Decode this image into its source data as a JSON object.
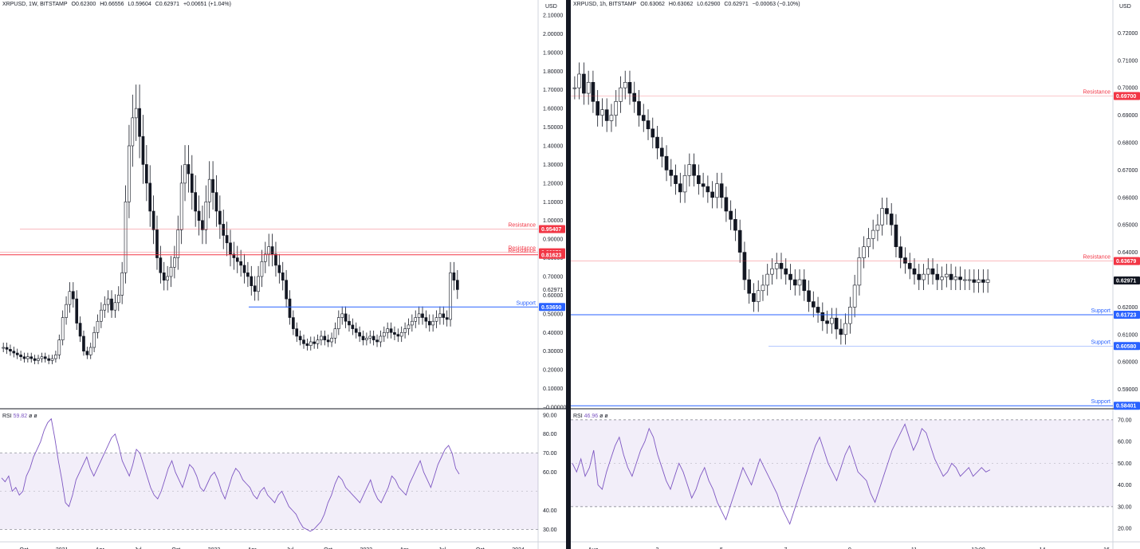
{
  "left": {
    "legend": {
      "symbol": "XRPUSD, 1W, BITSTAMP",
      "open": "O0.62300",
      "high": "H0.66556",
      "low": "L0.59604",
      "close": "C0.62971",
      "change": "+0.00651 (+1.04%)"
    },
    "currency": "USD",
    "price_axis": [
      "2.10000",
      "2.00000",
      "1.90000",
      "1.80000",
      "1.70000",
      "1.60000",
      "1.50000",
      "1.40000",
      "1.30000",
      "1.20000",
      "1.10000",
      "1.00000",
      "0.90000",
      "0.80000",
      "0.70000",
      "0.60000",
      "0.50000",
      "0.40000",
      "0.30000",
      "0.20000",
      "0.10000",
      "−0.00000"
    ],
    "price_axis_values": [
      2.1,
      2.0,
      1.9,
      1.8,
      1.7,
      1.6,
      1.5,
      1.4,
      1.3,
      1.2,
      1.1,
      1.0,
      0.9,
      0.8,
      0.7,
      0.6,
      0.5,
      0.4,
      0.3,
      0.2,
      0.1,
      0.0
    ],
    "price_range": [
      0.0,
      2.1
    ],
    "levels": [
      {
        "label": "Resistance",
        "value": 0.95407,
        "tag": "0.95407",
        "color": "#f23645",
        "style": "thin"
      },
      {
        "label": "Resistance",
        "value": 0.82973,
        "tag": "0.82973",
        "color": "#f23645",
        "style": "thin"
      },
      {
        "label": "Resistance",
        "value": 0.81623,
        "tag": "0.81623",
        "color": "#f23645",
        "style": "thick"
      },
      {
        "label": "Support",
        "value": 0.5365,
        "tag": "0.53650",
        "color": "#2962ff",
        "style": "thick"
      }
    ],
    "current_price": {
      "value": 0.62971,
      "tag": "0.62971"
    },
    "time_axis": [
      "Oct",
      "2021",
      "Apr",
      "Jul",
      "Oct",
      "2022",
      "Apr",
      "Jul",
      "Oct",
      "2023",
      "Apr",
      "Jul",
      "Oct",
      "2024"
    ],
    "rsi": {
      "label": "RSI",
      "value": "59.82",
      "extra": "ø ø",
      "axis": [
        "90.00",
        "80.00",
        "70.00",
        "60.00",
        "40.00",
        "30.00"
      ],
      "axis_values": [
        90,
        80,
        70,
        60,
        40,
        30
      ],
      "range": [
        26,
        92
      ],
      "band": [
        30,
        70
      ],
      "mid": 50,
      "values": [
        57,
        55,
        58,
        50,
        52,
        48,
        50,
        58,
        62,
        68,
        72,
        76,
        82,
        86,
        88,
        78,
        66,
        56,
        44,
        42,
        48,
        56,
        60,
        64,
        68,
        62,
        58,
        62,
        66,
        70,
        74,
        78,
        80,
        74,
        66,
        62,
        58,
        64,
        72,
        70,
        64,
        58,
        52,
        48,
        46,
        50,
        56,
        62,
        66,
        60,
        56,
        52,
        58,
        64,
        62,
        58,
        52,
        50,
        54,
        58,
        60,
        56,
        50,
        46,
        52,
        58,
        62,
        60,
        56,
        54,
        52,
        48,
        46,
        50,
        52,
        48,
        46,
        44,
        48,
        50,
        46,
        42,
        40,
        38,
        34,
        31,
        30,
        29,
        30,
        32,
        34,
        38,
        44,
        48,
        54,
        58,
        56,
        52,
        50,
        48,
        46,
        44,
        48,
        52,
        56,
        50,
        46,
        44,
        48,
        52,
        58,
        56,
        52,
        50,
        48,
        54,
        58,
        62,
        66,
        60,
        56,
        52,
        58,
        64,
        68,
        72,
        74,
        70,
        62,
        59
      ]
    },
    "candles": [
      0.32,
      0.31,
      0.3,
      0.29,
      0.28,
      0.27,
      0.26,
      0.27,
      0.26,
      0.25,
      0.26,
      0.27,
      0.26,
      0.25,
      0.26,
      0.28,
      0.36,
      0.48,
      0.55,
      0.62,
      0.58,
      0.45,
      0.38,
      0.3,
      0.28,
      0.32,
      0.4,
      0.46,
      0.52,
      0.55,
      0.58,
      0.52,
      0.56,
      0.6,
      0.72,
      1.1,
      1.4,
      1.55,
      1.6,
      1.45,
      1.3,
      1.2,
      1.05,
      0.95,
      0.8,
      0.72,
      0.68,
      0.7,
      0.75,
      0.8,
      0.95,
      1.2,
      1.3,
      1.25,
      1.15,
      1.05,
      1.0,
      0.95,
      1.1,
      1.22,
      1.15,
      1.05,
      0.98,
      0.92,
      0.88,
      0.82,
      0.8,
      0.78,
      0.76,
      0.72,
      0.7,
      0.65,
      0.62,
      0.7,
      0.78,
      0.82,
      0.86,
      0.82,
      0.76,
      0.72,
      0.68,
      0.58,
      0.48,
      0.42,
      0.38,
      0.36,
      0.34,
      0.33,
      0.35,
      0.34,
      0.36,
      0.38,
      0.36,
      0.35,
      0.37,
      0.42,
      0.48,
      0.5,
      0.46,
      0.44,
      0.42,
      0.4,
      0.38,
      0.36,
      0.37,
      0.38,
      0.36,
      0.35,
      0.38,
      0.4,
      0.42,
      0.4,
      0.39,
      0.38,
      0.4,
      0.42,
      0.44,
      0.46,
      0.48,
      0.5,
      0.48,
      0.46,
      0.44,
      0.46,
      0.48,
      0.5,
      0.48,
      0.47,
      0.72,
      0.68,
      0.63
    ]
  },
  "right": {
    "legend": {
      "symbol": "XRPUSD, 1h, BITSTAMP",
      "open": "O0.63062",
      "high": "H0.63062",
      "low": "L0.62900",
      "close": "C0.62971",
      "change": "−0.00063 (−0.10%)"
    },
    "currency": "USD",
    "price_axis": [
      "0.72000",
      "0.71000",
      "0.70000",
      "0.69000",
      "0.68000",
      "0.67000",
      "0.66000",
      "0.65000",
      "0.64000",
      "0.63000",
      "0.62000",
      "0.61000",
      "0.60000",
      "0.59000"
    ],
    "price_axis_values": [
      0.72,
      0.71,
      0.7,
      0.69,
      0.68,
      0.67,
      0.66,
      0.65,
      0.64,
      0.63,
      0.62,
      0.61,
      0.6,
      0.59
    ],
    "price_range": [
      0.5835,
      0.7265
    ],
    "levels": [
      {
        "label": "Resistance",
        "value": 0.697,
        "tag": "0.69700",
        "color": "#f23645",
        "style": "thin"
      },
      {
        "label": "Resistance",
        "value": 0.63679,
        "tag": "0.63679",
        "color": "#f23645",
        "style": "thin"
      },
      {
        "label": "Support",
        "value": 0.61723,
        "tag": "0.61723",
        "color": "#2962ff",
        "style": "thick"
      },
      {
        "label": "Support",
        "value": 0.6058,
        "tag": "0.60580",
        "color": "#2962ff",
        "style": "thin"
      },
      {
        "label": "Support",
        "value": 0.58401,
        "tag": "0.58401",
        "color": "#2962ff",
        "style": "thick"
      }
    ],
    "current_price": {
      "value": 0.62971,
      "tag": "0.62971"
    },
    "time_axis": [
      "Aug",
      "3",
      "5",
      "7",
      "9",
      "11",
      "12:00",
      "14",
      "16"
    ],
    "rsi": {
      "label": "RSI",
      "value": "46.96",
      "extra": "ø ø",
      "axis": [
        "70.00",
        "60.00",
        "50.00",
        "40.00",
        "30.00",
        "20.00"
      ],
      "axis_values": [
        70,
        60,
        50,
        40,
        30,
        20
      ],
      "range": [
        16,
        74
      ],
      "band": [
        30,
        70
      ],
      "mid": 50,
      "values": [
        50,
        46,
        52,
        44,
        48,
        56,
        40,
        38,
        46,
        52,
        58,
        62,
        54,
        48,
        44,
        50,
        56,
        60,
        66,
        62,
        54,
        48,
        42,
        38,
        44,
        50,
        46,
        40,
        34,
        38,
        44,
        48,
        42,
        38,
        32,
        28,
        24,
        30,
        36,
        42,
        48,
        44,
        40,
        46,
        52,
        48,
        44,
        40,
        36,
        30,
        26,
        22,
        28,
        34,
        40,
        46,
        52,
        58,
        62,
        56,
        50,
        46,
        42,
        48,
        54,
        58,
        52,
        46,
        44,
        42,
        36,
        32,
        38,
        44,
        50,
        56,
        60,
        64,
        68,
        62,
        56,
        60,
        66,
        64,
        58,
        52,
        48,
        44,
        46,
        50,
        48,
        44,
        46,
        48,
        44,
        46,
        48,
        46,
        47
      ]
    },
    "candles": [
      0.7,
      0.705,
      0.698,
      0.702,
      0.695,
      0.69,
      0.692,
      0.688,
      0.69,
      0.695,
      0.7,
      0.702,
      0.698,
      0.695,
      0.69,
      0.688,
      0.685,
      0.682,
      0.678,
      0.675,
      0.67,
      0.668,
      0.665,
      0.662,
      0.668,
      0.672,
      0.668,
      0.665,
      0.664,
      0.662,
      0.66,
      0.665,
      0.66,
      0.655,
      0.652,
      0.648,
      0.64,
      0.63,
      0.625,
      0.622,
      0.626,
      0.628,
      0.632,
      0.634,
      0.636,
      0.634,
      0.632,
      0.63,
      0.628,
      0.63,
      0.626,
      0.622,
      0.62,
      0.618,
      0.615,
      0.614,
      0.616,
      0.612,
      0.61,
      0.614,
      0.62,
      0.628,
      0.638,
      0.642,
      0.645,
      0.648,
      0.65,
      0.656,
      0.654,
      0.65,
      0.642,
      0.638,
      0.636,
      0.634,
      0.632,
      0.63,
      0.632,
      0.634,
      0.632,
      0.63,
      0.631,
      0.632,
      0.63,
      0.631,
      0.63,
      0.63,
      0.63,
      0.629,
      0.63,
      0.629,
      0.63
    ]
  }
}
